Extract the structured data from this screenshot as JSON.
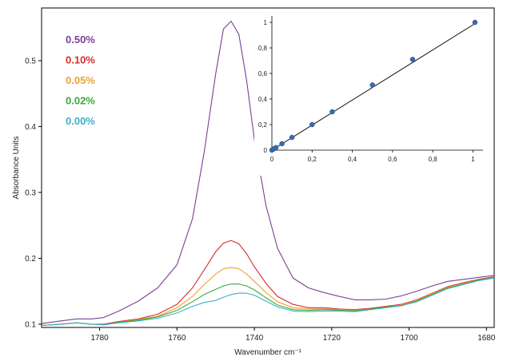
{
  "chart_data": [
    {
      "type": "line",
      "xlabel": "Wavenumber cm⁻¹",
      "ylabel": "Absorbance Units",
      "xlim": [
        1795,
        1678
      ],
      "ylim": [
        0.095,
        0.58
      ],
      "x_reversed": true,
      "x_ticks": [
        {
          "value": 1780,
          "label": "1780"
        },
        {
          "value": 1760,
          "label": "1760"
        },
        {
          "value": 1740,
          "label": "1740"
        },
        {
          "value": 1720,
          "label": "1720"
        },
        {
          "value": 1700,
          "label": "1700"
        },
        {
          "value": 1680,
          "label": "1680"
        }
      ],
      "y_ticks": [
        {
          "value": 0.1,
          "label": "0.1"
        },
        {
          "value": 0.2,
          "label": "0.2"
        },
        {
          "value": 0.3,
          "label": "0.3"
        },
        {
          "value": 0.4,
          "label": "0.4"
        },
        {
          "value": 0.5,
          "label": "0.5"
        }
      ],
      "legend_position": "top-left",
      "x": [
        1795,
        1790,
        1786,
        1782,
        1779,
        1775,
        1770,
        1765,
        1760,
        1756,
        1753,
        1750,
        1748,
        1746,
        1744,
        1742,
        1740,
        1737,
        1734,
        1730,
        1726,
        1722,
        1718,
        1714,
        1710,
        1706,
        1702,
        1698,
        1694,
        1690,
        1686,
        1682,
        1678
      ],
      "series": [
        {
          "name": "0.50%",
          "color": "#7b3f98",
          "values": [
            0.101,
            0.105,
            0.108,
            0.108,
            0.11,
            0.12,
            0.135,
            0.155,
            0.19,
            0.26,
            0.36,
            0.48,
            0.548,
            0.56,
            0.54,
            0.47,
            0.38,
            0.28,
            0.215,
            0.17,
            0.155,
            0.148,
            0.142,
            0.137,
            0.137,
            0.138,
            0.143,
            0.15,
            0.158,
            0.165,
            0.168,
            0.171,
            0.174
          ]
        },
        {
          "name": "0.10%",
          "color": "#d62a2a",
          "values": [
            0.098,
            0.1,
            0.102,
            0.1,
            0.1,
            0.104,
            0.108,
            0.115,
            0.13,
            0.155,
            0.182,
            0.21,
            0.223,
            0.227,
            0.222,
            0.207,
            0.187,
            0.162,
            0.142,
            0.13,
            0.125,
            0.125,
            0.123,
            0.122,
            0.124,
            0.127,
            0.13,
            0.137,
            0.147,
            0.157,
            0.163,
            0.168,
            0.172
          ]
        },
        {
          "name": "0.05%",
          "color": "#f0a030",
          "values": [
            0.098,
            0.1,
            0.102,
            0.1,
            0.099,
            0.103,
            0.107,
            0.112,
            0.125,
            0.142,
            0.16,
            0.176,
            0.184,
            0.186,
            0.184,
            0.176,
            0.165,
            0.148,
            0.134,
            0.125,
            0.123,
            0.123,
            0.122,
            0.121,
            0.123,
            0.126,
            0.129,
            0.136,
            0.146,
            0.156,
            0.162,
            0.167,
            0.171
          ]
        },
        {
          "name": "0.02%",
          "color": "#3aaa3a",
          "values": [
            0.098,
            0.1,
            0.102,
            0.1,
            0.099,
            0.103,
            0.106,
            0.111,
            0.121,
            0.134,
            0.145,
            0.153,
            0.158,
            0.161,
            0.161,
            0.158,
            0.152,
            0.14,
            0.129,
            0.122,
            0.121,
            0.122,
            0.121,
            0.12,
            0.123,
            0.126,
            0.128,
            0.135,
            0.145,
            0.155,
            0.161,
            0.167,
            0.171
          ]
        },
        {
          "name": "0.00%",
          "color": "#3ab0c8",
          "values": [
            0.098,
            0.1,
            0.102,
            0.1,
            0.099,
            0.102,
            0.105,
            0.109,
            0.117,
            0.127,
            0.133,
            0.136,
            0.141,
            0.145,
            0.147,
            0.147,
            0.144,
            0.135,
            0.126,
            0.12,
            0.119,
            0.12,
            0.12,
            0.119,
            0.122,
            0.125,
            0.128,
            0.134,
            0.144,
            0.154,
            0.16,
            0.166,
            0.17
          ]
        }
      ]
    },
    {
      "type": "scatter",
      "xlim": [
        0,
        1.05
      ],
      "ylim": [
        0,
        1.05
      ],
      "x_ticks": [
        {
          "value": 0,
          "label": "0"
        },
        {
          "value": 0.2,
          "label": "0,2"
        },
        {
          "value": 0.4,
          "label": "0,4"
        },
        {
          "value": 0.6,
          "label": "0,6"
        },
        {
          "value": 0.8,
          "label": "0,8"
        },
        {
          "value": 1,
          "label": "1"
        }
      ],
      "y_ticks": [
        {
          "value": 0,
          "label": "0"
        },
        {
          "value": 0.2,
          "label": "0,2"
        },
        {
          "value": 0.4,
          "label": "0,4"
        },
        {
          "value": 0.6,
          "label": "0,6"
        },
        {
          "value": 0.8,
          "label": "0,8"
        },
        {
          "value": 1,
          "label": "1"
        }
      ],
      "point_color": "#3a6bb0",
      "line_color": "#000000",
      "fit_line": {
        "x": [
          0,
          1.02
        ],
        "y": [
          0,
          1.0
        ]
      },
      "points": [
        {
          "x": 0,
          "y": 0
        },
        {
          "x": 0.01,
          "y": 0.01
        },
        {
          "x": 0.02,
          "y": 0.02
        },
        {
          "x": 0.05,
          "y": 0.05
        },
        {
          "x": 0.1,
          "y": 0.1
        },
        {
          "x": 0.2,
          "y": 0.2
        },
        {
          "x": 0.3,
          "y": 0.3
        },
        {
          "x": 0.5,
          "y": 0.51
        },
        {
          "x": 0.7,
          "y": 0.71
        },
        {
          "x": 1.01,
          "y": 1.0
        }
      ]
    }
  ]
}
